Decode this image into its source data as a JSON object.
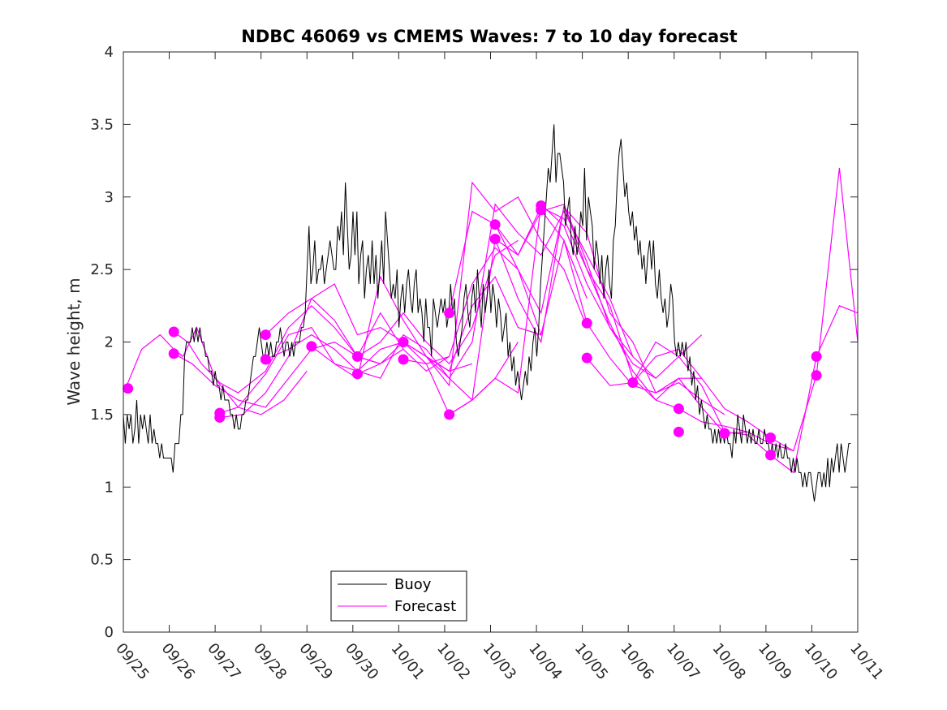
{
  "chart_data": {
    "type": "line",
    "title": "NDBC 46069 vs CMEMS Waves: 7 to 10 day forecast",
    "xlabel": "",
    "ylabel": "Wave height, m",
    "xlim": [
      0,
      16
    ],
    "ylim": [
      0,
      4
    ],
    "x_ticks": [
      "09/25",
      "09/26",
      "09/27",
      "09/28",
      "09/29",
      "09/30",
      "10/01",
      "10/02",
      "10/03",
      "10/04",
      "10/05",
      "10/06",
      "10/07",
      "10/08",
      "10/09",
      "10/10",
      "10/11"
    ],
    "y_ticks": [
      0,
      0.5,
      1,
      1.5,
      2,
      2.5,
      3,
      3.5,
      4
    ],
    "y_tick_labels": [
      "0",
      "0.5",
      "1",
      "1.5",
      "2",
      "2.5",
      "3",
      "3.5",
      "4"
    ],
    "legend": {
      "position": "bottom-center",
      "entries": [
        "Buoy",
        "Forecast"
      ]
    },
    "colors": {
      "buoy": "#000000",
      "forecast": "#ff00ff"
    },
    "series": [
      {
        "name": "Buoy",
        "x_step_days": 0.0417,
        "x_start": 0,
        "values": [
          1.5,
          1.3,
          1.5,
          1.4,
          1.5,
          1.3,
          1.4,
          1.6,
          1.3,
          1.5,
          1.4,
          1.5,
          1.4,
          1.3,
          1.5,
          1.3,
          1.4,
          1.3,
          1.3,
          1.2,
          1.3,
          1.2,
          1.2,
          1.2,
          1.2,
          1.2,
          1.1,
          1.3,
          1.3,
          1.3,
          1.5,
          1.5,
          1.9,
          2.0,
          2.0,
          2.0,
          2.1,
          2.0,
          2.1,
          2.0,
          2.1,
          2.0,
          2.0,
          1.9,
          1.9,
          1.8,
          1.8,
          1.7,
          1.8,
          1.7,
          1.7,
          1.6,
          1.7,
          1.6,
          1.6,
          1.6,
          1.5,
          1.5,
          1.4,
          1.5,
          1.4,
          1.4,
          1.5,
          1.5,
          1.6,
          1.6,
          1.7,
          1.8,
          1.9,
          1.9,
          2.0,
          2.1,
          2.0,
          1.9,
          1.9,
          2.0,
          1.9,
          2.0,
          1.9,
          1.9,
          2.0,
          2.0,
          2.1,
          2.0,
          1.9,
          2.0,
          2.0,
          1.9,
          2.0,
          1.9,
          2.0,
          2.0,
          2.0,
          2.1,
          2.1,
          2.2,
          2.5,
          2.8,
          2.4,
          2.5,
          2.7,
          2.4,
          2.5,
          2.5,
          2.6,
          2.4,
          2.5,
          2.6,
          2.7,
          2.6,
          2.5,
          2.5,
          2.8,
          2.7,
          2.9,
          2.6,
          3.1,
          2.8,
          2.5,
          2.6,
          2.9,
          2.6,
          2.9,
          2.4,
          2.6,
          2.7,
          2.3,
          2.5,
          2.6,
          2.4,
          2.7,
          2.4,
          2.6,
          2.3,
          2.5,
          2.7,
          2.4,
          2.9,
          2.7,
          2.5,
          2.3,
          2.4,
          2.3,
          2.5,
          2.1,
          2.3,
          2.4,
          2.2,
          2.4,
          2.5,
          2.3,
          2.2,
          2.4,
          2.5,
          2.2,
          2.3,
          2.2,
          2.0,
          2.3,
          2.1,
          2.1,
          1.9,
          2.3,
          2.2,
          2.1,
          2.2,
          2.3,
          2.2,
          2.3,
          2.1,
          2.2,
          2.4,
          2.2,
          2.3,
          2.0,
          1.9,
          2.0,
          2.1,
          2.3,
          2.4,
          2.2,
          2.1,
          2.3,
          2.4,
          2.2,
          2.5,
          2.3,
          2.1,
          2.4,
          2.2,
          2.3,
          2.5,
          2.2,
          2.4,
          2.3,
          2.1,
          2.3,
          2.2,
          2.0,
          2.1,
          2.2,
          1.9,
          2.0,
          1.8,
          1.9,
          1.7,
          1.8,
          1.7,
          1.6,
          1.7,
          1.8,
          1.7,
          1.9,
          1.8,
          2.0,
          2.1,
          1.9,
          2.1,
          2.4,
          2.6,
          2.8,
          3.0,
          3.2,
          3.1,
          3.3,
          3.5,
          3.1,
          3.3,
          3.3,
          3.2,
          3.1,
          2.8,
          2.9,
          3.0,
          2.7,
          2.6,
          2.8,
          2.6,
          2.7,
          2.9,
          2.8,
          3.2,
          2.7,
          3.0,
          2.9,
          2.8,
          2.5,
          2.7,
          2.6,
          2.4,
          2.6,
          2.3,
          2.5,
          2.6,
          2.4,
          2.3,
          2.7,
          2.8,
          3.1,
          3.3,
          3.4,
          3.2,
          3.0,
          3.1,
          2.9,
          2.8,
          2.9,
          2.7,
          2.8,
          2.6,
          2.7,
          2.5,
          2.6,
          2.4,
          2.6,
          2.7,
          2.5,
          2.7,
          2.4,
          2.3,
          2.5,
          2.3,
          2.2,
          2.3,
          2.1,
          2.2,
          2.4,
          2.3,
          2.0,
          1.9,
          2.0,
          1.9,
          2.0,
          1.9,
          2.0,
          1.8,
          1.9,
          1.7,
          1.8,
          1.6,
          1.7,
          1.5,
          1.6,
          1.5,
          1.4,
          1.5,
          1.4,
          1.4,
          1.3,
          1.4,
          1.3,
          1.4,
          1.3,
          1.4,
          1.3,
          1.4,
          1.3,
          1.3,
          1.2,
          1.4,
          1.3,
          1.5,
          1.4,
          1.3,
          1.5,
          1.4,
          1.3,
          1.4,
          1.3,
          1.4,
          1.3,
          1.3,
          1.4,
          1.3,
          1.3,
          1.4,
          1.3,
          1.3,
          1.2,
          1.3,
          1.2,
          1.3,
          1.2,
          1.3,
          1.2,
          1.2,
          1.3,
          1.2,
          1.2,
          1.1,
          1.2,
          1.1,
          1.2,
          1.1,
          1.1,
          1.0,
          1.1,
          1.0,
          1.1,
          1.1,
          1.0,
          0.9,
          1.0,
          1.1,
          1.1,
          1.0,
          1.1,
          1.0,
          1.2,
          1.0,
          1.2,
          1.1,
          1.2,
          1.3,
          1.1,
          1.3,
          1.2,
          1.1,
          1.2,
          1.3,
          1.3
        ]
      },
      {
        "name": "Forecast",
        "lines": [
          {
            "x": [
              0.05,
              0.4,
              0.8,
              1.1,
              1.3,
              1.6,
              2.0,
              2.5,
              3.0,
              3.5,
              4.0
            ],
            "y": [
              1.68,
              1.95,
              2.05,
              1.95,
              1.9,
              2.1,
              1.75,
              1.55,
              1.5,
              1.6,
              1.8
            ]
          },
          {
            "x": [
              1.1,
              1.4,
              1.7,
              2.1,
              2.5,
              3.1,
              3.6,
              4.1,
              4.6,
              5.1,
              5.6
            ],
            "y": [
              2.07,
              2.0,
              1.85,
              1.72,
              1.65,
              1.8,
              2.1,
              2.25,
              2.1,
              1.9,
              1.85
            ]
          },
          {
            "x": [
              1.1,
              1.5,
              2.0,
              2.5,
              3.1,
              3.6,
              4.1,
              4.6,
              5.1,
              5.6,
              6.1
            ],
            "y": [
              1.92,
              1.85,
              1.7,
              1.6,
              1.55,
              1.75,
              1.95,
              2.0,
              1.9,
              1.85,
              1.95
            ]
          },
          {
            "x": [
              2.1,
              2.5,
              3.1,
              3.6,
              4.1,
              4.6,
              5.1,
              5.6,
              6.1,
              6.6,
              7.1
            ],
            "y": [
              1.51,
              1.55,
              1.78,
              2.05,
              2.1,
              1.85,
              1.8,
              1.95,
              2.0,
              1.85,
              1.9
            ]
          },
          {
            "x": [
              2.1,
              2.6,
              3.1,
              3.6,
              4.1,
              4.6,
              5.1,
              5.6,
              6.1,
              6.6,
              7.1,
              7.6
            ],
            "y": [
              1.48,
              1.5,
              1.65,
              1.9,
              2.3,
              2.4,
              2.05,
              2.1,
              2.0,
              1.9,
              1.8,
              1.85
            ]
          },
          {
            "x": [
              3.1,
              3.6,
              4.1,
              4.6,
              5.1,
              5.6,
              6.1,
              6.6,
              7.1,
              7.6,
              8.1,
              8.6
            ],
            "y": [
              2.05,
              2.2,
              2.3,
              2.15,
              1.9,
              2.0,
              2.2,
              2.0,
              1.85,
              2.1,
              2.6,
              2.7
            ]
          },
          {
            "x": [
              3.1,
              3.6,
              4.1,
              4.6,
              5.1,
              5.6,
              6.1,
              6.6,
              7.1,
              7.6,
              8.1,
              8.6
            ],
            "y": [
              1.88,
              1.95,
              2.05,
              1.95,
              1.8,
              1.75,
              2.05,
              1.95,
              1.75,
              1.6,
              1.75,
              2.0
            ]
          },
          {
            "x": [
              4.1,
              4.6,
              5.1,
              5.6,
              6.1,
              6.6,
              7.1,
              7.6,
              8.1,
              8.6,
              9.1
            ],
            "y": [
              1.97,
              1.85,
              1.75,
              2.45,
              2.15,
              1.9,
              1.8,
              2.25,
              2.45,
              2.1,
              2.05
            ]
          },
          {
            "x": [
              5.1,
              5.6,
              6.1,
              6.6,
              7.1,
              7.6,
              8.1,
              8.6,
              9.1,
              9.6,
              10.1
            ],
            "y": [
              1.9,
              2.2,
              1.95,
              1.8,
              1.9,
              2.4,
              2.65,
              2.5,
              2.05,
              2.7,
              2.3
            ]
          },
          {
            "x": [
              5.1,
              5.6,
              6.1,
              6.6,
              7.1,
              7.6,
              8.1,
              8.6,
              9.1,
              9.6,
              10.1
            ],
            "y": [
              1.78,
              1.85,
              2.0,
              1.9,
              1.7,
              3.1,
              2.9,
              3.0,
              2.7,
              2.5,
              2.1
            ]
          },
          {
            "x": [
              6.1,
              6.6,
              7.1,
              7.6,
              8.1,
              8.6,
              9.1,
              9.6,
              10.1,
              10.6,
              11.1
            ],
            "y": [
              2.0,
              1.9,
              1.75,
              2.0,
              2.95,
              2.75,
              2.6,
              2.9,
              2.6,
              2.3,
              1.9
            ]
          },
          {
            "x": [
              6.1,
              6.6,
              7.1,
              7.6,
              8.1,
              8.6,
              9.1,
              9.6,
              10.1,
              10.6,
              11.1,
              11.6
            ],
            "y": [
              1.88,
              1.85,
              1.5,
              1.6,
              1.75,
              1.65,
              2.95,
              2.8,
              2.4,
              2.1,
              1.9,
              1.75
            ]
          },
          {
            "x": [
              7.1,
              7.6,
              8.1,
              8.6,
              9.1,
              9.6,
              10.1,
              10.6,
              11.1,
              11.6,
              12.1,
              12.6
            ],
            "y": [
              2.2,
              2.9,
              2.81,
              2.6,
              2.9,
              2.95,
              2.55,
              2.1,
              1.85,
              1.75,
              1.9,
              2.05
            ]
          },
          {
            "x": [
              7.1,
              7.6,
              8.1,
              8.6,
              9.1,
              9.6,
              10.1,
              10.6,
              11.1,
              11.6,
              12.1,
              12.6
            ],
            "y": [
              1.5,
              1.6,
              2.71,
              2.6,
              2.93,
              2.85,
              2.5,
              2.25,
              1.75,
              1.6,
              1.75,
              1.75
            ]
          },
          {
            "x": [
              8.1,
              8.6,
              9.1,
              9.6,
              10.1,
              10.6,
              11.1,
              11.6,
              12.1,
              12.6,
              13.1
            ],
            "y": [
              2.81,
              2.5,
              2.2,
              2.93,
              2.75,
              2.2,
              2.0,
              1.65,
              1.72,
              1.6,
              1.5
            ]
          },
          {
            "x": [
              8.1,
              8.6,
              9.1,
              9.6,
              10.1,
              10.6,
              11.1,
              11.6,
              12.1,
              12.6,
              13.1,
              13.6
            ],
            "y": [
              2.71,
              2.3,
              2.0,
              2.94,
              2.5,
              2.13,
              1.8,
              1.6,
              1.54,
              1.45,
              1.42,
              1.38
            ]
          },
          {
            "x": [
              9.1,
              9.6,
              10.1,
              10.6,
              11.1,
              11.6,
              12.1,
              12.6,
              13.1,
              13.6,
              14.1,
              14.6
            ],
            "y": [
              2.91,
              2.7,
              2.13,
              1.89,
              1.7,
              1.65,
              1.75,
              1.55,
              1.37,
              1.38,
              1.3,
              1.25
            ]
          },
          {
            "x": [
              10.1,
              10.6,
              11.1,
              11.6,
              12.1,
              12.6,
              13.1,
              13.6,
              14.1,
              14.6,
              15.1,
              15.6,
              16.0
            ],
            "y": [
              1.89,
              1.7,
              1.72,
              1.9,
              1.95,
              1.75,
              1.54,
              1.45,
              1.34,
              1.25,
              1.77,
              3.2,
              2.0
            ]
          },
          {
            "x": [
              11.1,
              11.6,
              12.1,
              12.6,
              13.1,
              13.6,
              14.1,
              14.6,
              15.1,
              15.6,
              16.0
            ],
            "y": [
              1.72,
              2.0,
              1.9,
              1.7,
              1.38,
              1.36,
              1.22,
              1.1,
              1.9,
              2.25,
              2.2
            ]
          }
        ],
        "markers": [
          [
            0.1,
            1.68
          ],
          [
            1.1,
            2.07
          ],
          [
            1.1,
            1.92
          ],
          [
            2.1,
            1.51
          ],
          [
            2.1,
            1.48
          ],
          [
            3.1,
            2.05
          ],
          [
            3.1,
            1.88
          ],
          [
            4.1,
            1.97
          ],
          [
            5.1,
            1.9
          ],
          [
            5.1,
            1.78
          ],
          [
            6.1,
            2.0
          ],
          [
            6.1,
            1.88
          ],
          [
            7.1,
            2.2
          ],
          [
            7.1,
            1.5
          ],
          [
            8.1,
            2.81
          ],
          [
            8.1,
            2.71
          ],
          [
            9.1,
            2.94
          ],
          [
            9.1,
            2.91
          ],
          [
            10.1,
            2.13
          ],
          [
            10.1,
            1.89
          ],
          [
            11.1,
            1.72
          ],
          [
            12.1,
            1.54
          ],
          [
            12.1,
            1.38
          ],
          [
            13.1,
            1.37
          ],
          [
            13.1,
            1.37
          ],
          [
            14.1,
            1.34
          ],
          [
            14.1,
            1.22
          ],
          [
            15.1,
            1.9
          ],
          [
            15.1,
            1.77
          ]
        ]
      }
    ]
  }
}
